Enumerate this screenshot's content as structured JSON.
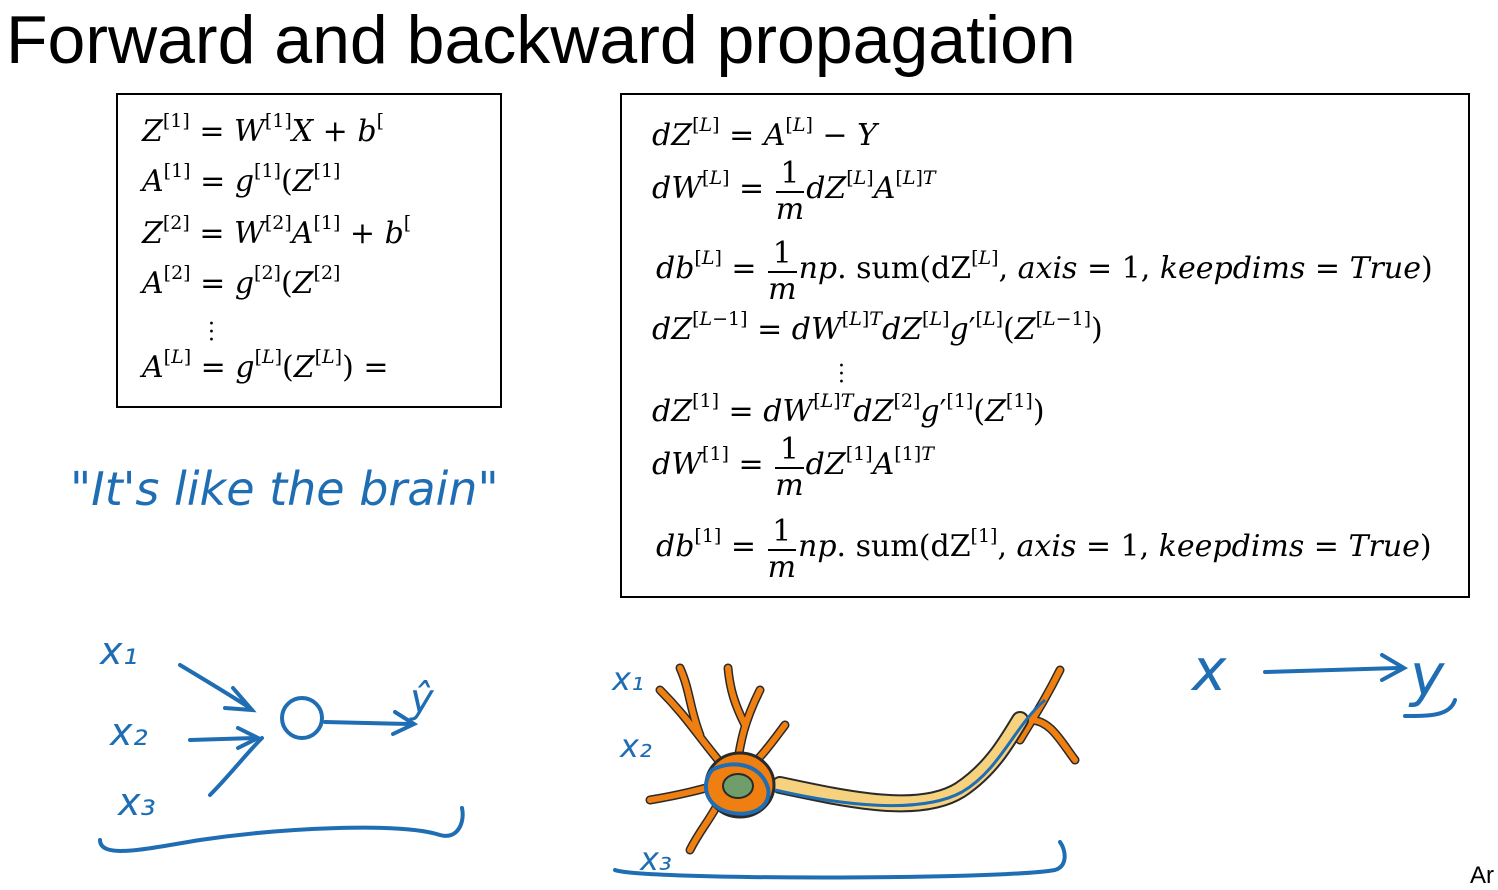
{
  "slide": {
    "title": "Forward and backward propagation",
    "credit": "Ar"
  },
  "forward": {
    "lines": [
      "Z^[1] = W^[1]X + b^[",
      "A^[1] = g^[1](Z^[1]",
      "Z^[2] = W^[2]A^[1] + b^[",
      "A^[2] = g^[2](Z^[2]",
      "⋮",
      "A^[L] = g^[L](Z^[L]) ="
    ]
  },
  "backward": {
    "lines": [
      "dZ^[L] = A^[L] − Y",
      "dW^[L] = 1/m dZ^[L] A^[L]T",
      "db^[L] = 1/m np.sum(dZ^[L], axis = 1, keepdims = True)",
      "dZ^[L−1] = dW^[L]T dZ^[L] g'^[L](Z^[L−1])",
      "⋮",
      "dZ^[1] = dW^[L]T dZ^[2] g'^[1](Z^[1])",
      "dW^[1] = 1/m dZ^[1] A^[1]T",
      "db^[1] = 1/m np.sum(dZ^[1], axis = 1, keepdims = True)"
    ]
  },
  "handwriting": {
    "quote": "\"It's like the brain\"",
    "x1": "x₁",
    "x2": "x₂",
    "x3": "x₃",
    "yhat": "ŷ",
    "neuron_x1": "x₁",
    "neuron_x2": "x₂",
    "neuron_x3": "x₃",
    "map_x": "x",
    "map_y": "y",
    "ink_color": "#1f6db3"
  },
  "neuron_colors": {
    "dendrite": "#f07f12",
    "nucleus": "#6f9e6a",
    "myelin": "#f7d27e",
    "outline": "#2a2a2a"
  }
}
